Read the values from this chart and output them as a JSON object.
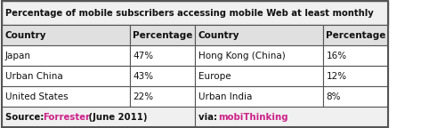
{
  "title": "Percentage of mobile subscribers accessing mobile Web at least monthly",
  "headers": [
    "Country",
    "Percentage",
    "Country",
    "Percentage"
  ],
  "rows": [
    [
      "Japan",
      "47%",
      "Hong Kong (China)",
      "16%"
    ],
    [
      "Urban China",
      "43%",
      "Europe",
      "12%"
    ],
    [
      "United States",
      "22%",
      "Urban India",
      "8%"
    ]
  ],
  "source_plain": "Source: ",
  "source_link": "Forrester",
  "source_mid": " (June 2011)      ",
  "via_plain": "via: ",
  "via_link": "mobiThinking",
  "link_color": "#cc2288",
  "border_color": "#555555",
  "text_color": "#111111",
  "figsize": [
    4.82,
    1.44
  ],
  "dpi": 100
}
